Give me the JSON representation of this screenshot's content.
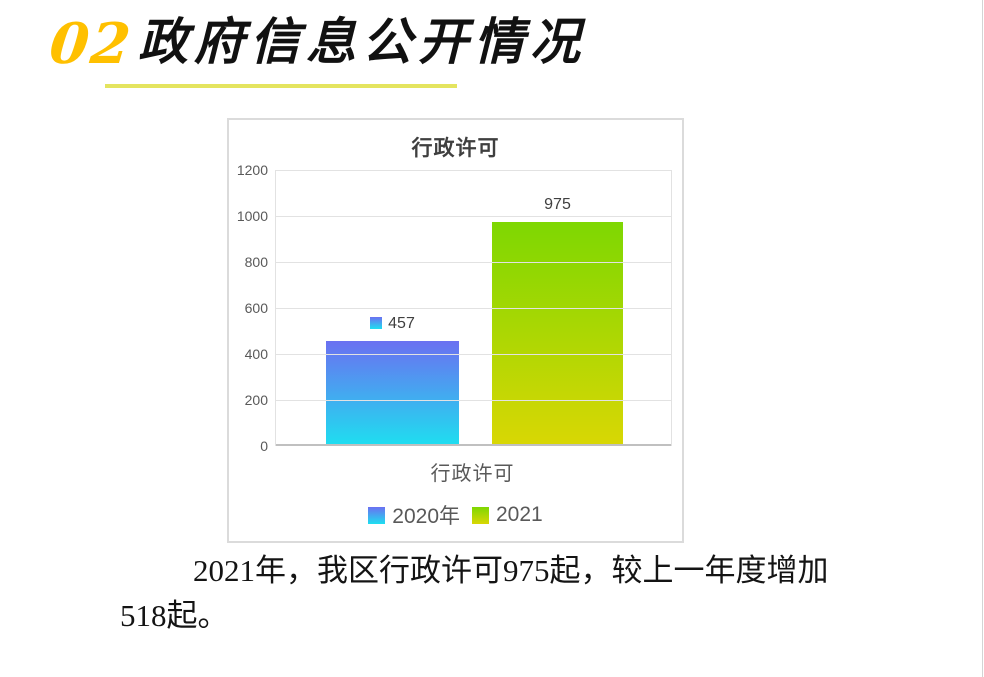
{
  "header": {
    "number": "02",
    "number_color": "#FFC000",
    "title": "政府信息公开情况",
    "underline_color": "#E4E45F"
  },
  "chart": {
    "title": "行政许可",
    "category_label": "行政许可",
    "y_ticks": [
      "1200",
      "1000",
      "800",
      "600",
      "400",
      "200",
      "0"
    ],
    "data_labels": [
      "457",
      "975"
    ],
    "legend": [
      {
        "label": "2020年"
      },
      {
        "label": "2021"
      }
    ],
    "colors": {
      "chart_border": "#dbdbdb",
      "gridline": "#e2e2e2",
      "axis_line": "#c0c0c0",
      "title_text": "#3f3f3f",
      "tick_text": "#595959",
      "label_text": "#404040",
      "bar_2020_top": "#6B70F1",
      "bar_2020_bottom": "#1EDFF0",
      "bar_2021_top": "#7ED702",
      "bar_2021_bottom": "#D9D704"
    }
  },
  "chart_data": {
    "type": "bar",
    "categories": [
      "行政许可"
    ],
    "series": [
      {
        "name": "2020年",
        "values": [
          457
        ]
      },
      {
        "name": "2021",
        "values": [
          975
        ]
      }
    ],
    "title": "行政许可",
    "xlabel": "",
    "ylabel": "",
    "ylim": [
      0,
      1200
    ],
    "y_tick_step": 200,
    "grid": true,
    "legend_position": "bottom",
    "data_labels": [
      457,
      975
    ]
  },
  "paragraph": {
    "line1": "2021年，我区行政许可975起，较上一年度增加",
    "line2": "518起。"
  }
}
